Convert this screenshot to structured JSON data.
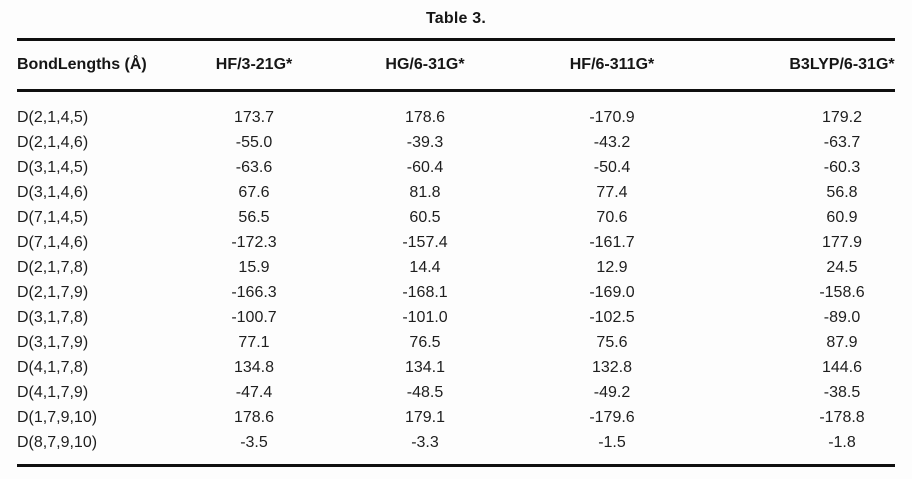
{
  "title": "Table 3.",
  "table": {
    "columns": [
      "BondLengths (Å)",
      "HF/3-21G*",
      "HG/6-31G*",
      "HF/6-311G*",
      "B3LYP/6-31G*"
    ],
    "rows": [
      {
        "label": "D(2,1,4,5)",
        "values": [
          "173.7",
          "178.6",
          "-170.9",
          "179.2"
        ]
      },
      {
        "label": "D(2,1,4,6)",
        "values": [
          "-55.0",
          "-39.3",
          "-43.2",
          "-63.7"
        ]
      },
      {
        "label": "D(3,1,4,5)",
        "values": [
          "-63.6",
          "-60.4",
          "-50.4",
          "-60.3"
        ]
      },
      {
        "label": "D(3,1,4,6)",
        "values": [
          "67.6",
          "81.8",
          "77.4",
          "56.8"
        ]
      },
      {
        "label": "D(7,1,4,5)",
        "values": [
          "56.5",
          "60.5",
          "70.6",
          "60.9"
        ]
      },
      {
        "label": "D(7,1,4,6)",
        "values": [
          "-172.3",
          "-157.4",
          "-161.7",
          "177.9"
        ]
      },
      {
        "label": "D(2,1,7,8)",
        "values": [
          "15.9",
          "14.4",
          "12.9",
          "24.5"
        ]
      },
      {
        "label": "D(2,1,7,9)",
        "values": [
          "-166.3",
          "-168.1",
          "-169.0",
          "-158.6"
        ]
      },
      {
        "label": "D(3,1,7,8)",
        "values": [
          "-100.7",
          "-101.0",
          "-102.5",
          "-89.0"
        ]
      },
      {
        "label": "D(3,1,7,9)",
        "values": [
          "77.1",
          "76.5",
          "75.6",
          "87.9"
        ]
      },
      {
        "label": "D(4,1,7,8)",
        "values": [
          "134.8",
          "134.1",
          "132.8",
          "144.6"
        ]
      },
      {
        "label": "D(4,1,7,9)",
        "values": [
          "-47.4",
          "-48.5",
          "-49.2",
          "-38.5"
        ]
      },
      {
        "label": "D(1,7,9,10)",
        "values": [
          "178.6",
          "179.1",
          "-179.6",
          "-178.8"
        ]
      },
      {
        "label": "D(8,7,9,10)",
        "values": [
          "-3.5",
          "-3.3",
          "-1.5",
          "-1.8"
        ]
      }
    ]
  },
  "colors": {
    "text": "#1e1e1e",
    "rule": "#101010",
    "background": "#fdfdfd"
  }
}
